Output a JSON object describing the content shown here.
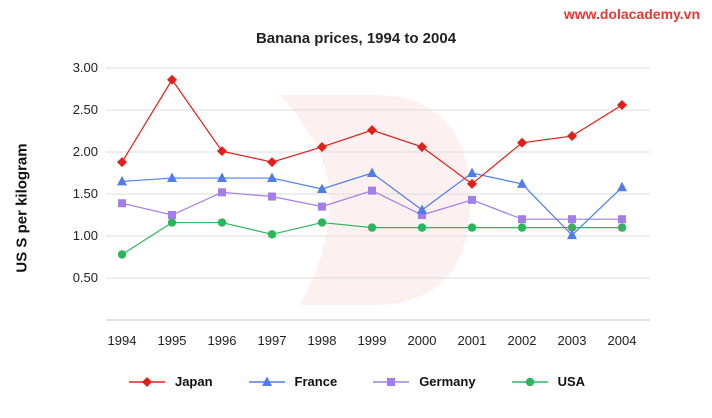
{
  "brand": {
    "text": "www.dolacademy.vn",
    "color": "#e53935"
  },
  "chart_data": {
    "type": "line",
    "title": "Banana prices, 1994 to 2004",
    "xlabel": "",
    "ylabel": "US S per kilogram",
    "categories": [
      "1994",
      "1995",
      "1996",
      "1997",
      "1998",
      "1999",
      "2000",
      "2001",
      "2002",
      "2003",
      "2004"
    ],
    "yticks": [
      "3.00",
      "2.50",
      "2.00",
      "1.50",
      "1.00",
      "0.50"
    ],
    "ylim": [
      0,
      3.0
    ],
    "grid": true,
    "legend_position": "bottom",
    "series": [
      {
        "name": "Japan",
        "color": "#e0201b",
        "marker": "diamond",
        "values": [
          1.88,
          2.86,
          2.01,
          1.88,
          2.06,
          2.26,
          2.06,
          1.62,
          2.11,
          2.19,
          2.56
        ]
      },
      {
        "name": "France",
        "color": "#4f7de9",
        "marker": "triangle",
        "values": [
          1.65,
          1.69,
          1.69,
          1.69,
          1.56,
          1.75,
          1.31,
          1.75,
          1.62,
          1.01,
          1.58
        ]
      },
      {
        "name": "Germany",
        "color": "#a47ee8",
        "marker": "square",
        "values": [
          1.39,
          1.25,
          1.52,
          1.47,
          1.35,
          1.54,
          1.25,
          1.43,
          1.2,
          1.2,
          1.2
        ]
      },
      {
        "name": "USA",
        "color": "#2db55d",
        "marker": "circle",
        "values": [
          0.78,
          1.16,
          1.16,
          1.02,
          1.16,
          1.1,
          1.1,
          1.1,
          1.1,
          1.1,
          1.1
        ]
      }
    ]
  }
}
